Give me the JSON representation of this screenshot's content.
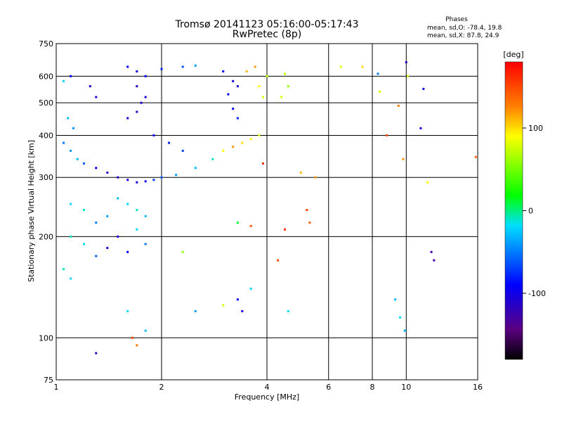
{
  "chart_data": {
    "type": "scatter",
    "title": "Tromsø 20141123 05:16:00-05:17:43",
    "subtitle": "RwPretec (8p)",
    "xlabel": "Frequency [MHz]",
    "ylabel": "Stationary phase Virtual Height [km]",
    "x_scale": "log",
    "y_scale": "log",
    "xlim": [
      1,
      16
    ],
    "ylim": [
      75,
      750
    ],
    "x_ticks": [
      1,
      2,
      4,
      6,
      8,
      10,
      16
    ],
    "y_ticks": [
      75,
      100,
      200,
      300,
      400,
      500,
      600,
      750
    ],
    "grid": true,
    "stats": {
      "heading": "Phases",
      "line_o": "mean, sd,O: -78.4, 19.8",
      "line_x": "mean, sd,X:  87.8, 24.9"
    },
    "colorbar": {
      "label": "[deg]",
      "ticks": [
        100,
        0,
        -100
      ],
      "range": [
        -180,
        180
      ],
      "colormap": "rainbow (black-purple-blue-cyan-green-yellow-orange-red)"
    },
    "series": [
      {
        "points": [
          [
            1.05,
            580,
            -20
          ],
          [
            1.1,
            600,
            -90
          ],
          [
            1.25,
            560,
            -110
          ],
          [
            1.3,
            520,
            -100
          ],
          [
            1.08,
            450,
            -30
          ],
          [
            1.12,
            420,
            -40
          ],
          [
            1.05,
            380,
            -50
          ],
          [
            1.1,
            360,
            -40
          ],
          [
            1.15,
            340,
            -30
          ],
          [
            1.2,
            330,
            -60
          ],
          [
            1.3,
            320,
            -100
          ],
          [
            1.4,
            310,
            -110
          ],
          [
            1.5,
            300,
            -110
          ],
          [
            1.6,
            295,
            -100
          ],
          [
            1.7,
            290,
            -100
          ],
          [
            1.8,
            292,
            -90
          ],
          [
            1.9,
            295,
            -70
          ],
          [
            2.0,
            300,
            -60
          ],
          [
            2.2,
            305,
            -40
          ],
          [
            2.5,
            320,
            -30
          ],
          [
            2.8,
            340,
            -10
          ],
          [
            3.0,
            360,
            90
          ],
          [
            3.2,
            370,
            120
          ],
          [
            3.4,
            380,
            100
          ],
          [
            3.6,
            390,
            90
          ],
          [
            3.8,
            400,
            80
          ],
          [
            1.6,
            450,
            -110
          ],
          [
            1.7,
            470,
            -120
          ],
          [
            1.75,
            500,
            -110
          ],
          [
            1.8,
            520,
            -100
          ],
          [
            1.7,
            560,
            -110
          ],
          [
            1.8,
            600,
            -90
          ],
          [
            2.0,
            630,
            -80
          ],
          [
            2.3,
            640,
            -60
          ],
          [
            2.5,
            645,
            -40
          ],
          [
            1.6,
            640,
            -90
          ],
          [
            1.7,
            620,
            -100
          ],
          [
            1.9,
            400,
            -100
          ],
          [
            2.1,
            380,
            -80
          ],
          [
            2.3,
            360,
            -70
          ],
          [
            3.0,
            620,
            -90
          ],
          [
            3.2,
            580,
            -100
          ],
          [
            3.3,
            560,
            -110
          ],
          [
            3.1,
            530,
            -100
          ],
          [
            3.2,
            480,
            -90
          ],
          [
            3.3,
            450,
            -80
          ],
          [
            3.5,
            620,
            110
          ],
          [
            3.7,
            640,
            120
          ],
          [
            3.8,
            560,
            90
          ],
          [
            3.9,
            520,
            80
          ],
          [
            4.0,
            600,
            70
          ],
          [
            4.5,
            610,
            70
          ],
          [
            4.6,
            560,
            60
          ],
          [
            4.4,
            520,
            80
          ],
          [
            1.1,
            250,
            -20
          ],
          [
            1.2,
            240,
            -10
          ],
          [
            1.3,
            220,
            -50
          ],
          [
            1.4,
            230,
            -40
          ],
          [
            1.5,
            260,
            -30
          ],
          [
            1.6,
            250,
            -20
          ],
          [
            1.7,
            240,
            -10
          ],
          [
            1.8,
            230,
            -30
          ],
          [
            1.1,
            200,
            -10
          ],
          [
            1.2,
            190,
            -20
          ],
          [
            1.3,
            175,
            -60
          ],
          [
            1.4,
            185,
            -110
          ],
          [
            1.5,
            200,
            -100
          ],
          [
            1.6,
            180,
            -90
          ],
          [
            1.7,
            210,
            -20
          ],
          [
            1.8,
            190,
            -50
          ],
          [
            1.05,
            160,
            -10
          ],
          [
            1.1,
            150,
            -20
          ],
          [
            1.3,
            90,
            -120
          ],
          [
            1.6,
            120,
            -20
          ],
          [
            1.65,
            100,
            150
          ],
          [
            1.7,
            95,
            130
          ],
          [
            1.8,
            105,
            -30
          ],
          [
            2.3,
            180,
            60
          ],
          [
            2.5,
            120,
            -40
          ],
          [
            3.0,
            125,
            80
          ],
          [
            3.3,
            130,
            -90
          ],
          [
            3.4,
            120,
            -100
          ],
          [
            3.6,
            140,
            -20
          ],
          [
            3.3,
            220,
            10
          ],
          [
            3.6,
            215,
            140
          ],
          [
            3.9,
            330,
            160
          ],
          [
            4.3,
            170,
            150
          ],
          [
            4.5,
            210,
            160
          ],
          [
            4.6,
            120,
            -20
          ],
          [
            5.0,
            310,
            110
          ],
          [
            5.2,
            240,
            150
          ],
          [
            5.3,
            220,
            140
          ],
          [
            5.5,
            300,
            120
          ],
          [
            6.5,
            640,
            80
          ],
          [
            7.5,
            640,
            100
          ],
          [
            8.3,
            610,
            -50
          ],
          [
            8.4,
            540,
            80
          ],
          [
            8.8,
            400,
            150
          ],
          [
            9.3,
            130,
            -30
          ],
          [
            9.5,
            490,
            130
          ],
          [
            9.8,
            340,
            120
          ],
          [
            10.0,
            660,
            -120
          ],
          [
            10.1,
            600,
            80
          ],
          [
            11.0,
            420,
            -100
          ],
          [
            11.2,
            550,
            -100
          ],
          [
            11.5,
            290,
            90
          ],
          [
            11.8,
            180,
            -130
          ],
          [
            12.0,
            170,
            -130
          ],
          [
            15.8,
            345,
            140
          ],
          [
            9.9,
            105,
            -30
          ],
          [
            9.6,
            115,
            -20
          ]
        ]
      }
    ]
  }
}
